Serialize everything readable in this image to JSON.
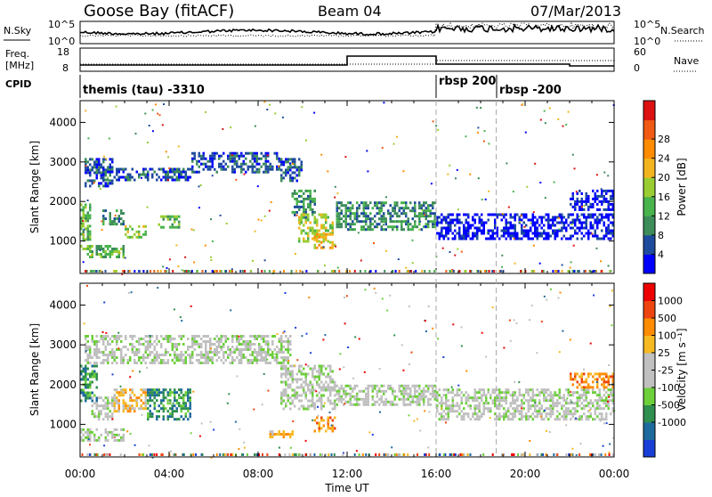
{
  "header": {
    "station": "Goose Bay (fitACF)",
    "beam": "Beam 04",
    "date": "07/Mar/2013"
  },
  "top_panels": {
    "nsky_label": "N.Sky",
    "nsky_ticks": [
      "10^5",
      "10^0"
    ],
    "nsearch_label": "N.Search",
    "nsearch_ticks": [
      "10^5",
      "10^0"
    ],
    "freq_label_1": "Freq.",
    "freq_label_2": "[MHz]",
    "freq_ticks": [
      "18",
      "8"
    ],
    "nave_label": "Nave",
    "nave_ticks": [
      "60",
      "0"
    ],
    "cpid_label": "CPID",
    "cpid_segments": [
      {
        "label": "themis (tau) -3310",
        "start": 0
      },
      {
        "label": "rbsp 200",
        "start": 16
      },
      {
        "label": "rbsp -200",
        "start": 18.7
      }
    ]
  },
  "chart_data": [
    {
      "type": "heatmap",
      "name": "power",
      "ylabel": "Slant Range [km]",
      "xlim": [
        0,
        24
      ],
      "ylim": [
        180,
        4550
      ],
      "y_ticks": [
        1000,
        2000,
        3000,
        4000
      ],
      "colorbar": {
        "label": "Power [dB]",
        "ticks": [
          "4",
          "8",
          "12",
          "16",
          "20",
          "24",
          "28"
        ],
        "colors": [
          "#0000ff",
          "#1e4b9e",
          "#3d8c5a",
          "#49b34c",
          "#9acd32",
          "#f3b51f",
          "#ff8c00",
          "#f05a14",
          "#dd1111"
        ]
      },
      "bands": [
        {
          "t0": 0.0,
          "t1": 0.5,
          "r0": 650,
          "r1": 900,
          "level": 4
        },
        {
          "t0": 0.0,
          "t1": 0.5,
          "r0": 1050,
          "r1": 1950,
          "level": 3
        },
        {
          "t0": 0.3,
          "t1": 2.0,
          "r0": 600,
          "r1": 900,
          "level": 3
        },
        {
          "t0": 1.0,
          "t1": 2.0,
          "r0": 1400,
          "r1": 1800,
          "level": 2
        },
        {
          "t0": 2.0,
          "t1": 3.0,
          "r0": 1100,
          "r1": 1400,
          "level": 4
        },
        {
          "t0": 0.2,
          "t1": 1.5,
          "r0": 2400,
          "r1": 3100,
          "level": 1
        },
        {
          "t0": 1.0,
          "t1": 5.0,
          "r0": 2550,
          "r1": 2850,
          "level": 1
        },
        {
          "t0": 3.5,
          "t1": 4.5,
          "r0": 1350,
          "r1": 1650,
          "level": 3
        },
        {
          "t0": 5.0,
          "t1": 9.0,
          "r0": 2750,
          "r1": 3250,
          "level": 1
        },
        {
          "t0": 9.0,
          "t1": 10.0,
          "r0": 2500,
          "r1": 3100,
          "level": 1
        },
        {
          "t0": 9.5,
          "t1": 10.6,
          "r0": 1600,
          "r1": 2300,
          "level": 2
        },
        {
          "t0": 9.8,
          "t1": 11.3,
          "r0": 1000,
          "r1": 1700,
          "level": 4
        },
        {
          "t0": 10.5,
          "t1": 11.5,
          "r0": 850,
          "r1": 1200,
          "level": 5
        },
        {
          "t0": 11.5,
          "t1": 16.0,
          "r0": 1300,
          "r1": 2000,
          "level": 2
        },
        {
          "t0": 16.0,
          "t1": 24.0,
          "r0": 1050,
          "r1": 1700,
          "level": 0
        },
        {
          "t0": 22.0,
          "t1": 24.0,
          "r0": 1800,
          "r1": 2300,
          "level": 0
        }
      ]
    },
    {
      "type": "heatmap",
      "name": "velocity",
      "xlabel": "Time UT",
      "ylabel": "Slant Range [km]",
      "xlim": [
        0,
        24
      ],
      "ylim": [
        180,
        4550
      ],
      "x_ticks": [
        "00:00",
        "04:00",
        "08:00",
        "12:00",
        "16:00",
        "20:00",
        "00:00"
      ],
      "y_ticks": [
        1000,
        2000,
        3000,
        4000
      ],
      "colorbar": {
        "label": "Velocity [m s⁻¹]",
        "ticks": [
          "1000",
          "500",
          "100",
          "25",
          "-25",
          "-100",
          "-500",
          "-1000"
        ],
        "colors": [
          "#1a3fd6",
          "#1e6a9e",
          "#2f8f4e",
          "#6dcf3a",
          "#c0c0c0",
          "#c0c0c0",
          "#f5b921",
          "#ff8c00",
          "#ee4410",
          "#ee0000"
        ]
      },
      "bands": [
        {
          "t0": 0.0,
          "t1": 2.0,
          "r0": 600,
          "r1": 900,
          "level": 4
        },
        {
          "t0": 0.0,
          "t1": 0.8,
          "r0": 1600,
          "r1": 2500,
          "level": 2
        },
        {
          "t0": 0.5,
          "t1": 1.5,
          "r0": 1100,
          "r1": 1700,
          "level": 4
        },
        {
          "t0": 1.5,
          "t1": 3.0,
          "r0": 1300,
          "r1": 1900,
          "level": 6
        },
        {
          "t0": 3.0,
          "t1": 5.0,
          "r0": 1100,
          "r1": 1900,
          "level": 2
        },
        {
          "t0": 0.2,
          "t1": 9.5,
          "r0": 2550,
          "r1": 3250,
          "level": 4
        },
        {
          "t0": 9.0,
          "t1": 11.5,
          "r0": 1400,
          "r1": 2500,
          "level": 4
        },
        {
          "t0": 10.5,
          "t1": 11.5,
          "r0": 800,
          "r1": 1200,
          "level": 7
        },
        {
          "t0": 8.5,
          "t1": 9.8,
          "r0": 650,
          "r1": 850,
          "level": 6
        },
        {
          "t0": 11.5,
          "t1": 16.0,
          "r0": 1500,
          "r1": 2000,
          "level": 4
        },
        {
          "t0": 16.0,
          "t1": 24.0,
          "r0": 1100,
          "r1": 1900,
          "level": 4
        },
        {
          "t0": 22.0,
          "t1": 24.0,
          "r0": 1900,
          "r1": 2300,
          "level": 7
        }
      ]
    }
  ]
}
